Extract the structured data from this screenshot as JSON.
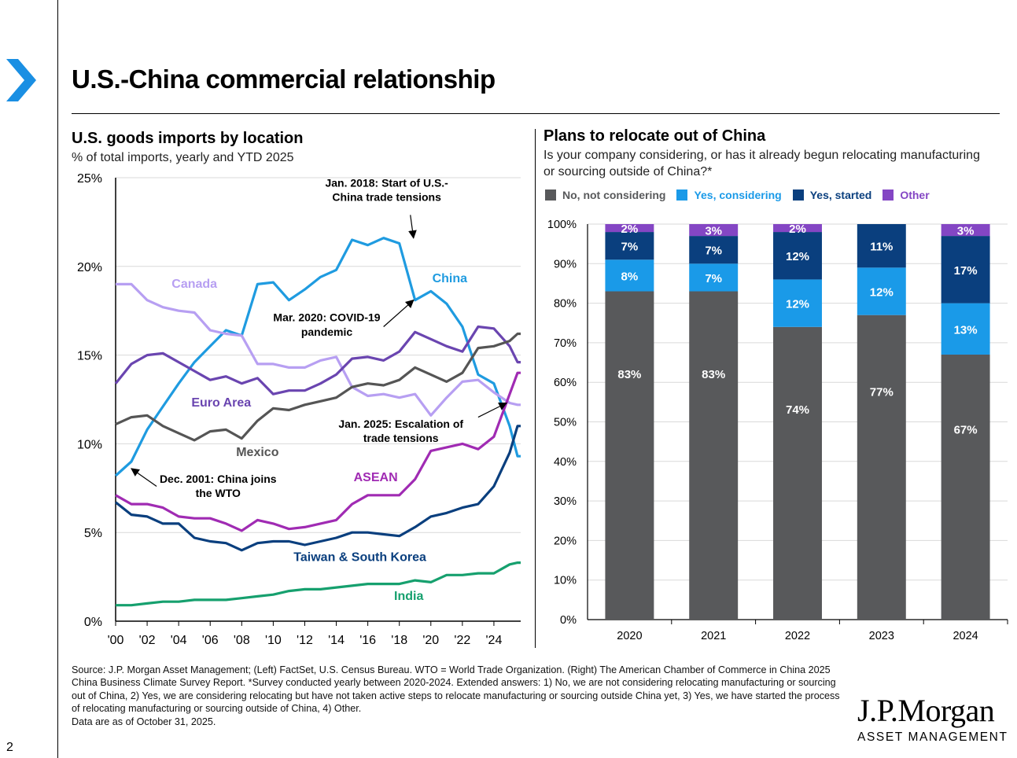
{
  "page": {
    "title": "U.S.-China commercial relationship",
    "number": "2",
    "source": "Source: J.P. Morgan Asset Management; (Left) FactSet, U.S. Census Bureau. WTO = World Trade Organization. (Right) The American Chamber of Commerce in China 2025 China Business Climate Survey Report. *Survey conducted yearly between 2020-2024. Extended answers: 1) No, we are not considering relocating manufacturing or sourcing out of China, 2) Yes, we are considering relocating but have not taken active steps to relocate manufacturing or sourcing outside China yet, 3) Yes, we have started the process of relocating manufacturing or sourcing outside of China, 4) Other.",
    "source_date": "Data are as of October 31, 2025.",
    "logo_word": "J.P.Morgan",
    "logo_sub": "ASSET MANAGEMENT"
  },
  "chart_data": [
    {
      "type": "line",
      "title": "U.S. goods imports by location",
      "subtitle": "% of total imports, yearly and YTD 2025",
      "ylim": [
        0,
        25
      ],
      "yticks": [
        "0%",
        "5%",
        "10%",
        "15%",
        "20%",
        "25%"
      ],
      "ytick_values": [
        0,
        5,
        10,
        15,
        20,
        25
      ],
      "xticks": [
        "'00",
        "'02",
        "'04",
        "'06",
        "'08",
        "'10",
        "'12",
        "'14",
        "'16",
        "'18",
        "'20",
        "'22",
        "'24"
      ],
      "xtick_values": [
        2000,
        2002,
        2004,
        2006,
        2008,
        2010,
        2012,
        2014,
        2016,
        2018,
        2020,
        2022,
        2024
      ],
      "xlim": [
        2000,
        2025.7
      ],
      "x": [
        2000,
        2001,
        2002,
        2003,
        2004,
        2005,
        2006,
        2007,
        2008,
        2009,
        2010,
        2011,
        2012,
        2013,
        2014,
        2015,
        2016,
        2017,
        2018,
        2019,
        2020,
        2021,
        2022,
        2023,
        2024,
        2025,
        2025.5,
        2025.7
      ],
      "series": [
        {
          "name": "China",
          "color": "#1f9be0",
          "label_x": 2021.2,
          "label_y": 19.1,
          "values": [
            8.2,
            9.0,
            10.8,
            12.1,
            13.4,
            14.6,
            15.5,
            16.4,
            16.1,
            19.0,
            19.1,
            18.1,
            18.7,
            19.4,
            19.8,
            21.5,
            21.2,
            21.6,
            21.3,
            18.1,
            18.6,
            17.9,
            16.6,
            13.9,
            13.4,
            11.0,
            9.3,
            9.3
          ]
        },
        {
          "name": "Canada",
          "color": "#b79ff2",
          "label_x": 2005.0,
          "label_y": 18.8,
          "values": [
            19.0,
            19.0,
            18.1,
            17.7,
            17.5,
            17.4,
            16.4,
            16.2,
            16.1,
            14.5,
            14.5,
            14.3,
            14.3,
            14.7,
            14.9,
            13.2,
            12.7,
            12.8,
            12.6,
            12.8,
            11.6,
            12.6,
            13.5,
            13.6,
            12.9,
            12.3,
            12.2,
            12.2
          ]
        },
        {
          "name": "Euro Area",
          "color": "#6a45b0",
          "label_x": 2006.7,
          "label_y": 12.1,
          "values": [
            13.4,
            14.5,
            15.0,
            15.1,
            14.6,
            14.1,
            13.6,
            13.8,
            13.4,
            13.7,
            12.8,
            13.0,
            13.0,
            13.4,
            13.9,
            14.8,
            14.9,
            14.7,
            15.2,
            16.3,
            15.9,
            15.5,
            15.2,
            16.6,
            16.5,
            15.5,
            14.6,
            14.6
          ]
        },
        {
          "name": "Mexico",
          "color": "#555555",
          "label_x": 2009.0,
          "label_y": 9.3,
          "values": [
            11.1,
            11.5,
            11.6,
            11.0,
            10.6,
            10.2,
            10.7,
            10.8,
            10.3,
            11.3,
            12.0,
            11.9,
            12.2,
            12.4,
            12.6,
            13.2,
            13.4,
            13.3,
            13.6,
            14.3,
            13.9,
            13.5,
            14.0,
            15.4,
            15.5,
            15.8,
            16.2,
            16.2
          ]
        },
        {
          "name": "ASEAN",
          "color": "#a02bb3",
          "label_x": 2016.5,
          "label_y": 7.9,
          "values": [
            7.1,
            6.6,
            6.6,
            6.4,
            5.9,
            5.8,
            5.8,
            5.5,
            5.1,
            5.7,
            5.5,
            5.2,
            5.3,
            5.5,
            5.7,
            6.6,
            7.1,
            7.1,
            7.1,
            8.0,
            9.6,
            9.8,
            10.0,
            9.7,
            10.4,
            12.8,
            14.0,
            14.0
          ]
        },
        {
          "name": "Taiwan & South Korea",
          "color": "#0a3f7e",
          "label_x": 2015.5,
          "label_y": 3.4,
          "values": [
            6.7,
            6.0,
            5.9,
            5.5,
            5.5,
            4.7,
            4.5,
            4.4,
            4.0,
            4.4,
            4.5,
            4.5,
            4.3,
            4.5,
            4.7,
            5.0,
            5.0,
            4.9,
            4.8,
            5.3,
            5.9,
            6.1,
            6.4,
            6.6,
            7.6,
            9.5,
            11.0,
            11.0
          ]
        },
        {
          "name": "India",
          "color": "#16a06e",
          "label_x": 2018.6,
          "label_y": 1.2,
          "values": [
            0.9,
            0.9,
            1.0,
            1.1,
            1.1,
            1.2,
            1.2,
            1.2,
            1.3,
            1.4,
            1.5,
            1.7,
            1.8,
            1.8,
            1.9,
            2.0,
            2.1,
            2.1,
            2.1,
            2.3,
            2.2,
            2.6,
            2.6,
            2.7,
            2.7,
            3.2,
            3.3,
            3.3
          ]
        }
      ],
      "annotations": [
        {
          "text": "Jan. 2018: Start of U.S.-",
          "x": 2017.2,
          "y": 24.5
        },
        {
          "text": "China trade tensions",
          "x": 2017.2,
          "y": 23.7
        },
        {
          "text": "Mar. 2020: COVID-19",
          "x": 2013.4,
          "y": 16.9
        },
        {
          "text": "pandemic",
          "x": 2013.4,
          "y": 16.1
        },
        {
          "text": "Jan. 2025: Escalation of",
          "x": 2018.1,
          "y": 10.9
        },
        {
          "text": "trade tensions",
          "x": 2018.1,
          "y": 10.1
        },
        {
          "text": "Dec. 2001: China joins",
          "x": 2006.5,
          "y": 7.8
        },
        {
          "text": "the WTO",
          "x": 2006.5,
          "y": 7.0
        }
      ],
      "arrows": [
        {
          "from": [
            2018.7,
            22.9
          ],
          "to": [
            2018.9,
            21.6
          ]
        },
        {
          "from": [
            2017.0,
            16.6
          ],
          "to": [
            2018.9,
            18.1
          ]
        },
        {
          "from": [
            2023.0,
            11.5
          ],
          "to": [
            2024.8,
            12.3
          ]
        },
        {
          "from": [
            2002.6,
            7.6
          ],
          "to": [
            2001.0,
            8.6
          ]
        }
      ]
    },
    {
      "type": "bar",
      "stacked": true,
      "title": "Plans to relocate out of China",
      "subtitle": "Is your company considering, or has it already begun relocating manufacturing or sourcing outside of China?*",
      "categories": [
        "2020",
        "2021",
        "2022",
        "2023",
        "2024"
      ],
      "ylim": [
        0,
        100
      ],
      "yticks": [
        "0%",
        "10%",
        "20%",
        "30%",
        "40%",
        "50%",
        "60%",
        "70%",
        "80%",
        "90%",
        "100%"
      ],
      "series": [
        {
          "name": "No, not considering",
          "color": "#58595b",
          "values": [
            83,
            83,
            74,
            77,
            67
          ],
          "labels": [
            "83%",
            "83%",
            "74%",
            "77%",
            "67%"
          ]
        },
        {
          "name": "Yes, considering",
          "color": "#1a9ae8",
          "values": [
            8,
            7,
            12,
            12,
            13
          ],
          "labels": [
            "8%",
            "7%",
            "12%",
            "12%",
            "13%"
          ]
        },
        {
          "name": "Yes, started",
          "color": "#0a3f7e",
          "values": [
            7,
            7,
            12,
            11,
            17
          ],
          "labels": [
            "7%",
            "7%",
            "12%",
            "11%",
            "17%"
          ]
        },
        {
          "name": "Other",
          "color": "#8446c4",
          "values": [
            2,
            3,
            2,
            0,
            3
          ],
          "labels": [
            "2%",
            "3%",
            "2%",
            "",
            "3%"
          ]
        }
      ]
    }
  ]
}
